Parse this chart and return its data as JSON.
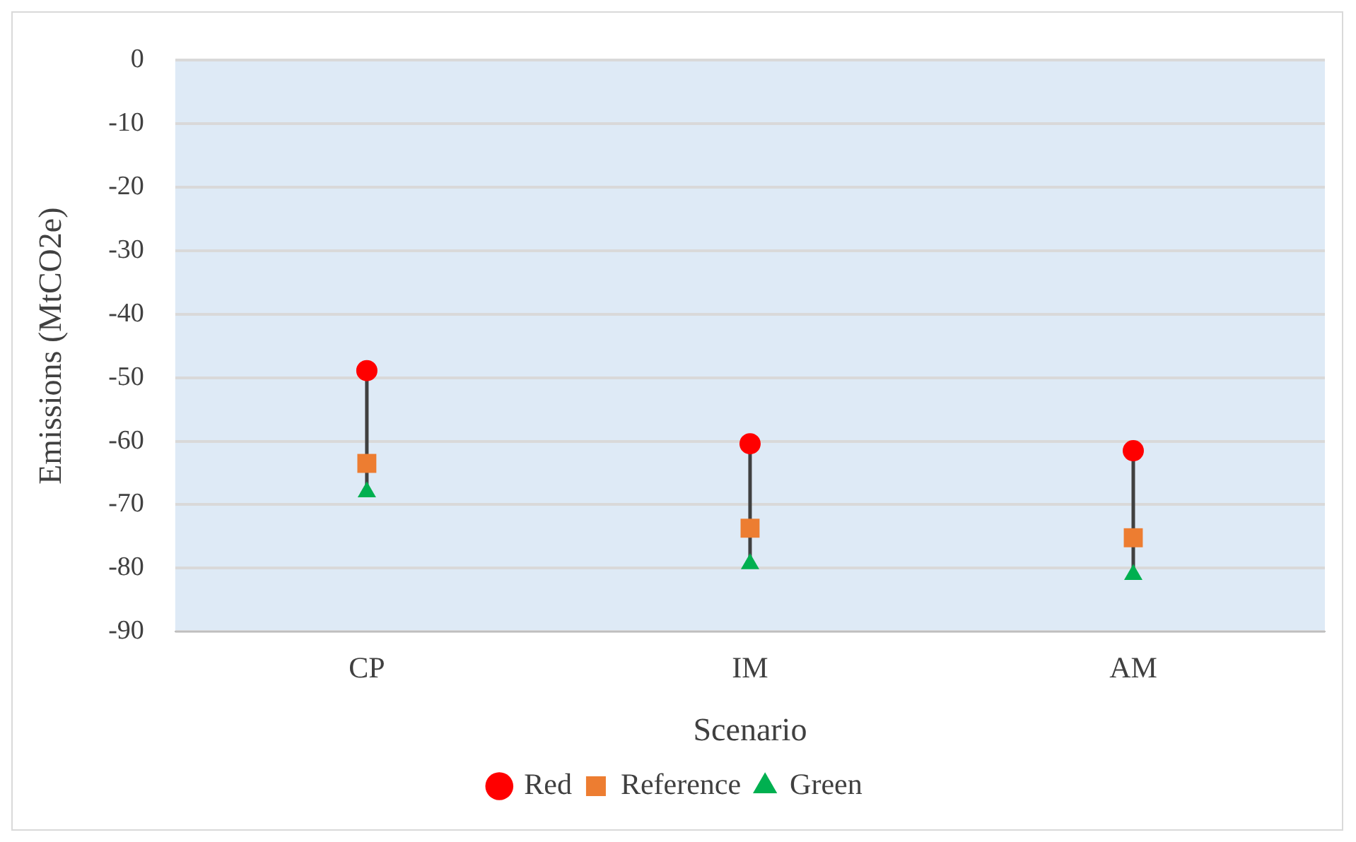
{
  "chart_data": {
    "type": "scatter",
    "xlabel": "Scenario",
    "ylabel": "Emissions (MtCO2e)",
    "categories": [
      "CP",
      "IM",
      "AM"
    ],
    "series": [
      {
        "name": "Red",
        "color": "#ff0000",
        "marker": "circle",
        "values": [
          -48.9,
          -60.4,
          -61.5
        ]
      },
      {
        "name": "Reference",
        "color": "#ed7d31",
        "marker": "square",
        "values": [
          -63.5,
          -73.7,
          -75.2
        ]
      },
      {
        "name": "Green",
        "color": "#00b050",
        "marker": "triangle",
        "values": [
          -68,
          -79.3,
          -81
        ]
      }
    ],
    "ylim": [
      -90,
      0
    ],
    "yticks": [
      -90,
      -80,
      -70,
      -60,
      -50,
      -40,
      -30,
      -20,
      -10,
      0
    ],
    "grid": "y",
    "legend": "bottom"
  }
}
